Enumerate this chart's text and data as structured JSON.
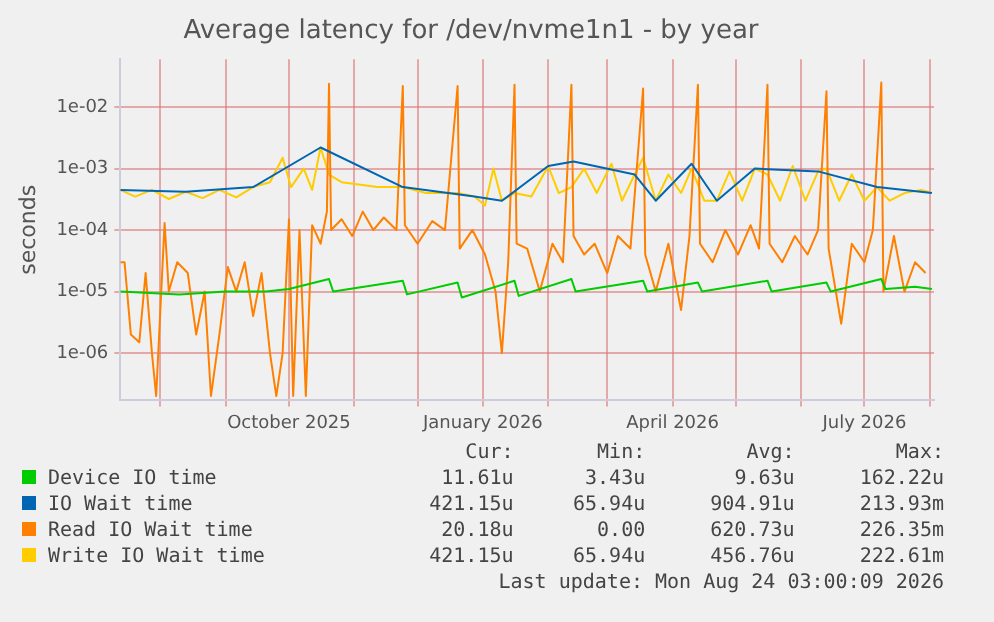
{
  "chart_data": {
    "type": "line",
    "title": "Average latency for /dev/nvme1n1 - by year",
    "ylabel": "seconds",
    "log": "y",
    "grid": true,
    "legend": "bottom",
    "marker": "none",
    "line_style": "solid",
    "xlim": [
      "2025-07-13",
      "2026-08-03"
    ],
    "xticks": [
      {
        "value": "2025-08-01",
        "label": null
      },
      {
        "value": "2025-09-01",
        "label": null
      },
      {
        "value": "2025-10-01",
        "label": "October 2025"
      },
      {
        "value": "2025-11-01",
        "label": null
      },
      {
        "value": "2025-12-01",
        "label": null
      },
      {
        "value": "2026-01-01",
        "label": "January 2026"
      },
      {
        "value": "2026-02-01",
        "label": null
      },
      {
        "value": "2026-03-01",
        "label": null
      },
      {
        "value": "2026-04-01",
        "label": "April 2026"
      },
      {
        "value": "2026-05-01",
        "label": null
      },
      {
        "value": "2026-06-01",
        "label": null
      },
      {
        "value": "2026-07-01",
        "label": "July 2026"
      },
      {
        "value": "2026-08-01",
        "label": null
      }
    ],
    "ylim": [
      1.7e-07,
      0.06
    ],
    "yticks": [
      {
        "value": 1e-06,
        "label": "1e-06"
      },
      {
        "value": 1e-05,
        "label": "1e-05"
      },
      {
        "value": 0.0001,
        "label": "1e-04"
      },
      {
        "value": 0.001,
        "label": "1e-03"
      },
      {
        "value": 0.01,
        "label": "1e-02"
      }
    ],
    "series": [
      {
        "name": "Device IO time",
        "color": "#00cc00",
        "x": [
          "2025-07-13",
          "2025-08-10",
          "2025-09-01",
          "2025-09-20",
          "2025-10-01",
          "2025-10-20",
          "2025-10-22",
          "2025-11-24",
          "2025-11-26",
          "2025-12-20",
          "2025-12-22",
          "2026-01-16",
          "2026-01-18",
          "2026-02-12",
          "2026-02-14",
          "2026-03-18",
          "2026-03-20",
          "2026-04-13",
          "2026-04-15",
          "2026-05-16",
          "2026-05-18",
          "2026-06-13",
          "2026-06-15",
          "2026-07-09",
          "2026-07-11",
          "2026-07-25",
          "2026-08-02"
        ],
        "values": [
          1e-05,
          9e-06,
          1e-05,
          1e-05,
          1.1e-05,
          1.6e-05,
          1e-05,
          1.5e-05,
          9e-06,
          1.4e-05,
          8e-06,
          1.5e-05,
          8.5e-06,
          1.6e-05,
          1e-05,
          1.5e-05,
          1e-05,
          1.4e-05,
          1e-05,
          1.5e-05,
          1e-05,
          1.4e-05,
          1e-05,
          1.6e-05,
          1.1e-05,
          1.2e-05,
          1.1e-05
        ]
      },
      {
        "name": "IO Wait time",
        "color": "#0066b3",
        "x": [
          "2025-07-13",
          "2025-08-13",
          "2025-09-14",
          "2025-10-16",
          "2025-11-24",
          "2025-12-28",
          "2026-01-10",
          "2026-02-01",
          "2026-02-13",
          "2026-03-14",
          "2026-03-24",
          "2026-04-10",
          "2026-04-22",
          "2026-05-10",
          "2026-06-09",
          "2026-07-07",
          "2026-08-02"
        ],
        "values": [
          0.00045,
          0.00042,
          0.0005,
          0.0022,
          0.0005,
          0.00035,
          0.0003,
          0.0011,
          0.0013,
          0.0008,
          0.0003,
          0.0012,
          0.0003,
          0.001,
          0.0009,
          0.0005,
          0.0004
        ]
      },
      {
        "name": "Read IO Wait time",
        "color": "#ff8000",
        "x": [
          "2025-07-13",
          "2025-07-15",
          "2025-07-18",
          "2025-07-22",
          "2025-07-25",
          "2025-07-28",
          "2025-07-30",
          "2025-08-03",
          "2025-08-05",
          "2025-08-09",
          "2025-08-14",
          "2025-08-18",
          "2025-08-22",
          "2025-08-25",
          "2025-08-29",
          "2025-09-02",
          "2025-09-06",
          "2025-09-10",
          "2025-09-14",
          "2025-09-18",
          "2025-09-22",
          "2025-09-25",
          "2025-09-28",
          "2025-10-01",
          "2025-10-03",
          "2025-10-06",
          "2025-10-09",
          "2025-10-12",
          "2025-10-16",
          "2025-10-19",
          "2025-10-20",
          "2025-10-21",
          "2025-10-26",
          "2025-10-31",
          "2025-11-05",
          "2025-11-10",
          "2025-11-15",
          "2025-11-21",
          "2025-11-24",
          "2025-11-25",
          "2025-12-01",
          "2025-12-08",
          "2025-12-14",
          "2025-12-20",
          "2025-12-21",
          "2025-12-27",
          "2026-01-02",
          "2026-01-07",
          "2026-01-10",
          "2026-01-13",
          "2026-01-16",
          "2026-01-17",
          "2026-01-22",
          "2026-01-28",
          "2026-02-03",
          "2026-02-08",
          "2026-02-12",
          "2026-02-13",
          "2026-02-18",
          "2026-02-23",
          "2026-03-01",
          "2026-03-06",
          "2026-03-12",
          "2026-03-18",
          "2026-03-19",
          "2026-03-24",
          "2026-03-30",
          "2026-04-05",
          "2026-04-09",
          "2026-04-13",
          "2026-04-14",
          "2026-04-20",
          "2026-04-26",
          "2026-05-02",
          "2026-05-08",
          "2026-05-12",
          "2026-05-16",
          "2026-05-17",
          "2026-05-23",
          "2026-05-29",
          "2026-06-04",
          "2026-06-09",
          "2026-06-13",
          "2026-06-14",
          "2026-06-20",
          "2026-06-25",
          "2026-07-01",
          "2026-07-05",
          "2026-07-09",
          "2026-07-10",
          "2026-07-15",
          "2026-07-20",
          "2026-07-25",
          "2026-07-30"
        ],
        "values": [
          3e-05,
          3e-05,
          2e-06,
          1.5e-06,
          2e-05,
          1e-06,
          2e-07,
          0.00013,
          1e-05,
          3e-05,
          2e-05,
          2e-06,
          1e-05,
          2e-07,
          2e-06,
          2.5e-05,
          1e-05,
          3e-05,
          4e-06,
          2e-05,
          1e-06,
          2e-07,
          1e-06,
          0.00015,
          2e-07,
          0.0001,
          2e-07,
          0.00012,
          6e-05,
          0.0002,
          0.024,
          0.0001,
          0.00015,
          8e-05,
          0.0002,
          0.0001,
          0.00016,
          0.0001,
          0.022,
          0.00012,
          6e-05,
          0.00014,
          0.0001,
          0.022,
          5e-05,
          0.0001,
          4e-05,
          1e-05,
          1e-06,
          3e-05,
          0.023,
          6e-05,
          5e-05,
          1e-05,
          6e-05,
          3e-05,
          0.023,
          8e-05,
          4e-05,
          6e-05,
          2e-05,
          8e-05,
          5e-05,
          0.02,
          4e-05,
          1e-05,
          6e-05,
          5e-06,
          8e-05,
          0.023,
          6e-05,
          3e-05,
          0.0001,
          4e-05,
          0.00012,
          5e-05,
          0.023,
          6e-05,
          3e-05,
          8e-05,
          4e-05,
          0.0001,
          0.018,
          5e-05,
          3e-06,
          6e-05,
          3e-05,
          0.0001,
          0.025,
          1e-05,
          8e-05,
          1e-05,
          3e-05,
          2e-05
        ]
      },
      {
        "name": "Write IO Wait time",
        "color": "#ffcc00",
        "x": [
          "2025-07-13",
          "2025-07-20",
          "2025-07-28",
          "2025-08-05",
          "2025-08-13",
          "2025-08-21",
          "2025-08-29",
          "2025-09-06",
          "2025-09-14",
          "2025-09-22",
          "2025-09-28",
          "2025-10-02",
          "2025-10-08",
          "2025-10-12",
          "2025-10-16",
          "2025-10-20",
          "2025-10-26",
          "2025-11-03",
          "2025-11-12",
          "2025-11-24",
          "2025-12-05",
          "2025-12-20",
          "2025-12-28",
          "2026-01-02",
          "2026-01-06",
          "2026-01-10",
          "2026-01-16",
          "2026-01-24",
          "2026-02-01",
          "2026-02-06",
          "2026-02-12",
          "2026-02-18",
          "2026-02-24",
          "2026-03-03",
          "2026-03-08",
          "2026-03-14",
          "2026-03-18",
          "2026-03-24",
          "2026-03-30",
          "2026-04-05",
          "2026-04-10",
          "2026-04-16",
          "2026-04-22",
          "2026-04-28",
          "2026-05-04",
          "2026-05-10",
          "2026-05-16",
          "2026-05-22",
          "2026-05-28",
          "2026-06-03",
          "2026-06-09",
          "2026-06-13",
          "2026-06-19",
          "2026-06-25",
          "2026-07-01",
          "2026-07-07",
          "2026-07-13",
          "2026-07-20",
          "2026-07-28",
          "2026-08-02"
        ],
        "values": [
          0.00045,
          0.00035,
          0.00045,
          0.00032,
          0.00042,
          0.00033,
          0.00045,
          0.00034,
          0.0005,
          0.0006,
          0.0015,
          0.0005,
          0.001,
          0.00045,
          0.0022,
          0.0008,
          0.0006,
          0.00055,
          0.0005,
          0.0005,
          0.0004,
          0.0004,
          0.00035,
          0.00025,
          0.001,
          0.0003,
          0.0004,
          0.00035,
          0.0011,
          0.0004,
          0.0005,
          0.001,
          0.0004,
          0.0012,
          0.0003,
          0.0008,
          0.0015,
          0.0003,
          0.0008,
          0.0004,
          0.001,
          0.0003,
          0.0003,
          0.0009,
          0.0003,
          0.001,
          0.0008,
          0.0003,
          0.0011,
          0.0003,
          0.0009,
          0.001,
          0.0003,
          0.0008,
          0.0003,
          0.0005,
          0.0003,
          0.0004,
          0.00045,
          0.0004
        ]
      }
    ],
    "annotations": [
      "Cur:",
      "Min:",
      "Avg:",
      "Max:",
      "11.61u",
      "3.43u",
      "9.63u",
      "162.22u",
      "421.15u",
      "65.94u",
      "904.91u",
      "213.93m",
      "20.18u",
      "0.00",
      "620.73u",
      "226.35m",
      "421.15u",
      "65.94u",
      "456.76u",
      "222.61m",
      "Last update: Mon Aug 24 03:00:09 2026"
    ]
  }
}
